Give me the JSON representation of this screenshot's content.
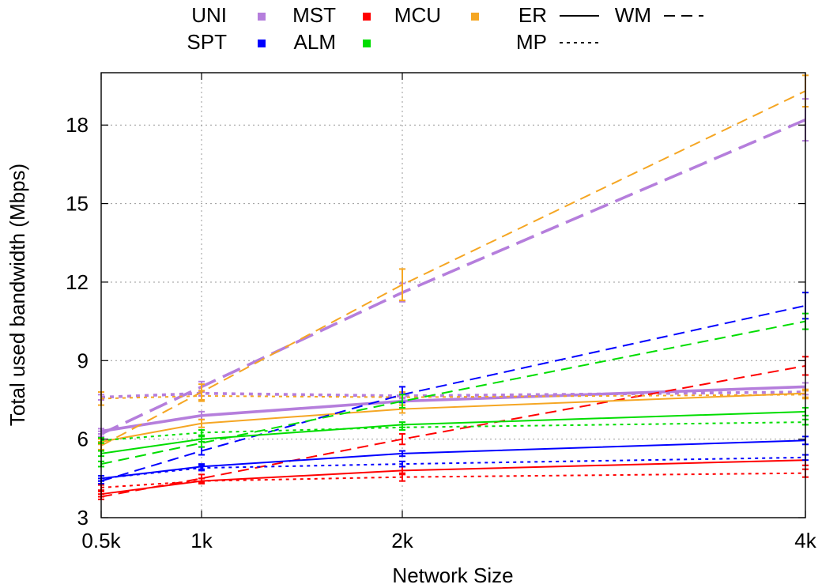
{
  "chart_data": {
    "type": "line",
    "xlabel": "Network Size",
    "ylabel": "Total used bandwidth (Mbps)",
    "x": [
      500,
      1000,
      2000,
      4000
    ],
    "x_tick_labels": [
      "0.5k",
      "1k",
      "2k",
      "4k"
    ],
    "xlim": [
      500,
      4000
    ],
    "ylim": [
      3,
      20
    ],
    "y_ticks": [
      3,
      6,
      9,
      12,
      15,
      18
    ],
    "grid": "dotted",
    "legend_position": "top",
    "legend": {
      "row1": [
        "UNI",
        "MST",
        "MCU",
        "ER",
        "WM"
      ],
      "row2": [
        "SPT",
        "ALM",
        "",
        "MP"
      ]
    },
    "series": [
      {
        "color": "#b57edc",
        "style": "solid",
        "bold": true,
        "values": [
          6.3,
          6.9,
          7.45,
          8.0
        ],
        "err": [
          0.1,
          0.15,
          0.15,
          0.15
        ]
      },
      {
        "color": "#b57edc",
        "style": "dashed",
        "bold": true,
        "values": [
          6.2,
          8.0,
          11.6,
          18.2
        ],
        "err": [
          0.1,
          0.2,
          0.35,
          0.8
        ]
      },
      {
        "color": "#b57edc",
        "style": "dotted",
        "bold": true,
        "values": [
          7.6,
          7.75,
          7.65,
          7.8
        ],
        "err": [
          0.1,
          0.1,
          0.1,
          0.1
        ]
      },
      {
        "color": "#ff0000",
        "style": "solid",
        "values": [
          3.9,
          4.4,
          4.8,
          5.2
        ],
        "err": [
          0.1,
          0.1,
          0.15,
          0.2
        ]
      },
      {
        "color": "#ff0000",
        "style": "dashed",
        "values": [
          3.8,
          4.5,
          6.0,
          8.8
        ],
        "err": [
          0.1,
          0.15,
          0.2,
          0.35
        ]
      },
      {
        "color": "#ff0000",
        "style": "dotted",
        "values": [
          4.15,
          4.4,
          4.55,
          4.7
        ],
        "err": [
          0.1,
          0.1,
          0.15,
          0.15
        ]
      },
      {
        "color": "#f5a623",
        "style": "solid",
        "values": [
          5.9,
          6.6,
          7.15,
          7.75
        ],
        "err": [
          0.1,
          0.15,
          0.15,
          0.15
        ]
      },
      {
        "color": "#f5a623",
        "style": "dashed",
        "values": [
          5.75,
          7.8,
          11.9,
          19.3
        ],
        "err": [
          0.15,
          0.3,
          0.6,
          0.6
        ]
      },
      {
        "color": "#f5a623",
        "style": "dotted",
        "values": [
          7.55,
          7.65,
          7.6,
          7.7
        ],
        "err": [
          0.25,
          0.2,
          0.2,
          0.15
        ]
      },
      {
        "color": "#0000ff",
        "style": "solid",
        "values": [
          4.5,
          4.95,
          5.45,
          5.95
        ],
        "err": [
          0.1,
          0.1,
          0.1,
          0.15
        ]
      },
      {
        "color": "#0000ff",
        "style": "dashed",
        "values": [
          4.4,
          5.55,
          7.7,
          11.1
        ],
        "err": [
          0.1,
          0.15,
          0.3,
          0.5
        ]
      },
      {
        "color": "#0000ff",
        "style": "dotted",
        "values": [
          4.5,
          4.9,
          5.05,
          5.3
        ],
        "err": [
          0.1,
          0.1,
          0.1,
          0.1
        ]
      },
      {
        "color": "#00dd00",
        "style": "solid",
        "values": [
          5.45,
          6.0,
          6.55,
          7.05
        ],
        "err": [
          0.1,
          0.1,
          0.1,
          0.15
        ]
      },
      {
        "color": "#00dd00",
        "style": "dashed",
        "values": [
          5.05,
          5.85,
          7.45,
          10.5
        ],
        "err": [
          0.1,
          0.15,
          0.25,
          0.3
        ]
      },
      {
        "color": "#00dd00",
        "style": "dotted",
        "values": [
          5.95,
          6.25,
          6.45,
          6.65
        ],
        "err": [
          0.1,
          0.1,
          0.1,
          0.1
        ]
      }
    ]
  },
  "legend_keys": {
    "colors": {
      "MST": "#b57edc",
      "MCU": "#ff0000",
      "ER": "#f5a623",
      "ALM": "#0000ff",
      "green": "#00dd00"
    },
    "styles": {
      "WM": "dashed",
      "MP": "dotted",
      "ER": "solid"
    }
  }
}
